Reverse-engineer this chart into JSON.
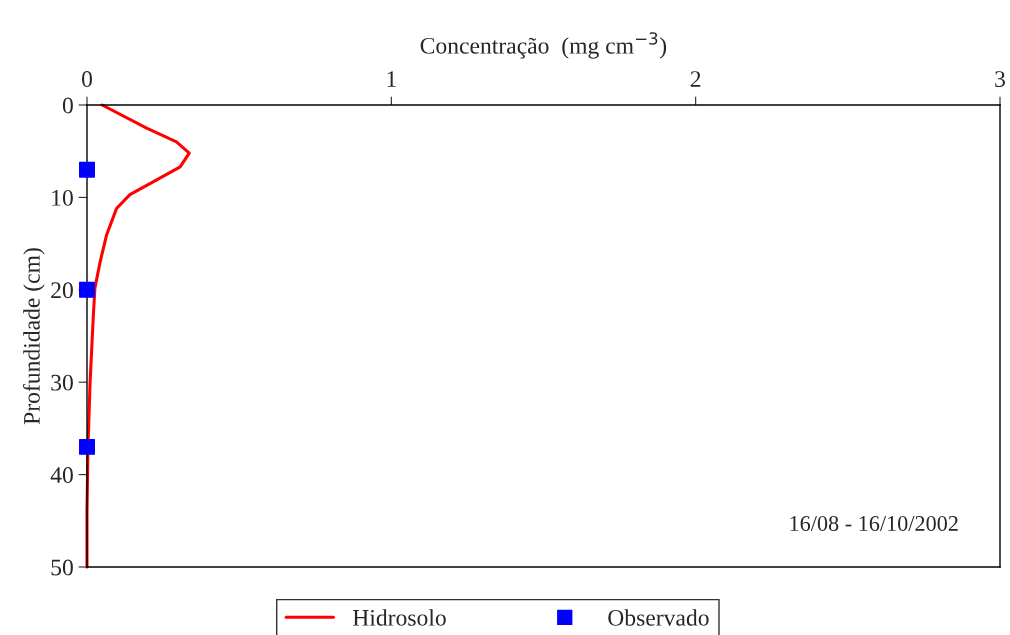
{
  "chart_data": {
    "type": "line",
    "xlabel": "Concentração  (mg cm$^{−3}$)",
    "ylabel": "Profundidade (cm)",
    "xlim": [
      0,
      3
    ],
    "xticks": [
      0,
      1,
      2,
      3
    ],
    "ylim": [
      50,
      0
    ],
    "yticks": [
      0,
      10,
      20,
      30,
      40,
      50
    ],
    "grid": false,
    "legend": "bottom",
    "series": [
      {
        "name": "Hidrosolo",
        "color": "#ff0000",
        "marker": "none",
        "line_style": "solid",
        "x": [
          0.05,
          0.196,
          0.294,
          0.336,
          0.306,
          0.229,
          0.141,
          0.097,
          0.064,
          0.043,
          0.026,
          0.021,
          0.01,
          0.003,
          0.0,
          0.0
        ],
        "values": [
          0,
          2.5,
          4.0,
          5.2,
          6.7,
          8.1,
          9.7,
          11.2,
          14.1,
          17.0,
          19.8,
          22.7,
          30.1,
          37.3,
          44,
          50
        ]
      },
      {
        "name": "Observado",
        "type": "scatter",
        "color": "#0000ff",
        "marker": "square",
        "x": [
          0,
          0,
          0
        ],
        "values": [
          7,
          20,
          37
        ]
      }
    ],
    "annotations": [
      "16/08 - 16/10/2002"
    ]
  }
}
